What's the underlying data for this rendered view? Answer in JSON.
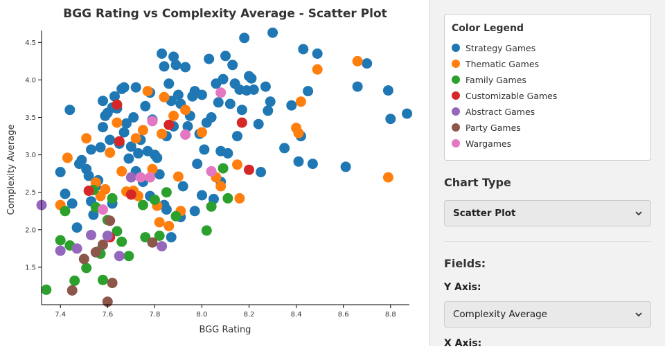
{
  "chart_data": {
    "type": "scatter",
    "title": "BGG Rating vs Complexity Average - Scatter Plot",
    "xlabel": "BGG Rating",
    "ylabel": "Complexity Average",
    "xlim": [
      7.32,
      8.88
    ],
    "ylim": [
      1.0,
      4.66
    ],
    "x_ticks": [
      "7.4",
      "7.6",
      "7.8",
      "8.0",
      "8.2",
      "8.4",
      "8.6",
      "8.8"
    ],
    "y_ticks": [
      "1.5",
      "2.0",
      "2.5",
      "3.0",
      "3.5",
      "4.0",
      "4.5"
    ],
    "series": [
      {
        "name": "Strategy Games",
        "color": "#1f77b4",
        "points": [
          [
            7.4,
            2.77
          ],
          [
            7.42,
            2.48
          ],
          [
            7.45,
            2.35
          ],
          [
            7.47,
            2.03
          ],
          [
            7.48,
            2.88
          ],
          [
            7.49,
            2.93
          ],
          [
            7.51,
            2.81
          ],
          [
            7.52,
            2.72
          ],
          [
            7.53,
            2.38
          ],
          [
            7.54,
            2.2
          ],
          [
            7.55,
            2.58
          ],
          [
            7.56,
            2.66
          ],
          [
            7.57,
            3.1
          ],
          [
            7.58,
            3.37
          ],
          [
            7.59,
            3.52
          ],
          [
            7.6,
            3.56
          ],
          [
            7.61,
            3.2
          ],
          [
            7.62,
            3.63
          ],
          [
            7.63,
            3.78
          ],
          [
            7.64,
            3.62
          ],
          [
            7.65,
            3.15
          ],
          [
            7.66,
            3.88
          ],
          [
            7.67,
            3.3
          ],
          [
            7.68,
            3.42
          ],
          [
            7.69,
            2.95
          ],
          [
            7.7,
            3.11
          ],
          [
            7.71,
            3.5
          ],
          [
            7.72,
            2.78
          ],
          [
            7.73,
            3.02
          ],
          [
            7.74,
            3.2
          ],
          [
            7.75,
            2.64
          ],
          [
            7.76,
            3.65
          ],
          [
            7.77,
            3.05
          ],
          [
            7.78,
            3.83
          ],
          [
            7.79,
            3.47
          ],
          [
            7.8,
            3.0
          ],
          [
            7.81,
            2.96
          ],
          [
            7.82,
            2.74
          ],
          [
            7.83,
            4.35
          ],
          [
            7.84,
            4.18
          ],
          [
            7.85,
            3.25
          ],
          [
            7.86,
            3.95
          ],
          [
            7.87,
            3.72
          ],
          [
            7.88,
            4.31
          ],
          [
            7.89,
            4.2
          ],
          [
            7.9,
            3.8
          ],
          [
            7.91,
            3.68
          ],
          [
            7.92,
            2.58
          ],
          [
            7.93,
            4.17
          ],
          [
            7.94,
            3.38
          ],
          [
            7.95,
            3.52
          ],
          [
            7.96,
            3.78
          ],
          [
            7.97,
            3.85
          ],
          [
            7.98,
            2.88
          ],
          [
            7.99,
            3.28
          ],
          [
            8.0,
            3.8
          ],
          [
            8.01,
            3.07
          ],
          [
            8.02,
            3.43
          ],
          [
            8.03,
            4.28
          ],
          [
            8.04,
            3.5
          ],
          [
            8.05,
            2.41
          ],
          [
            8.06,
            3.95
          ],
          [
            8.07,
            3.7
          ],
          [
            8.08,
            3.05
          ],
          [
            8.09,
            4.01
          ],
          [
            8.1,
            4.32
          ],
          [
            8.11,
            3.02
          ],
          [
            8.12,
            3.68
          ],
          [
            8.13,
            4.2
          ],
          [
            8.14,
            3.95
          ],
          [
            8.15,
            3.25
          ],
          [
            8.16,
            3.87
          ],
          [
            8.17,
            3.6
          ],
          [
            8.18,
            4.56
          ],
          [
            8.19,
            3.86
          ],
          [
            8.2,
            4.05
          ],
          [
            8.21,
            4.02
          ],
          [
            8.22,
            3.87
          ],
          [
            8.24,
            3.41
          ],
          [
            8.25,
            2.77
          ],
          [
            8.27,
            3.91
          ],
          [
            8.28,
            3.59
          ],
          [
            8.29,
            3.71
          ],
          [
            8.3,
            4.63
          ],
          [
            8.35,
            3.09
          ],
          [
            8.38,
            3.66
          ],
          [
            8.41,
            2.91
          ],
          [
            8.42,
            3.25
          ],
          [
            8.43,
            4.41
          ],
          [
            8.45,
            3.85
          ],
          [
            8.47,
            2.88
          ],
          [
            8.49,
            4.35
          ],
          [
            8.61,
            2.84
          ],
          [
            8.66,
            3.91
          ],
          [
            8.7,
            4.22
          ],
          [
            8.79,
            3.86
          ],
          [
            8.8,
            3.48
          ],
          [
            8.87,
            3.55
          ],
          [
            8.08,
            2.64
          ],
          [
            7.53,
            3.07
          ],
          [
            7.62,
            2.35
          ],
          [
            7.78,
            2.45
          ],
          [
            7.85,
            2.27
          ],
          [
            7.91,
            2.17
          ],
          [
            7.97,
            2.25
          ],
          [
            8.0,
            2.46
          ],
          [
            7.87,
            1.9
          ],
          [
            7.84,
            2.33
          ],
          [
            7.67,
            3.9
          ],
          [
            7.72,
            3.9
          ],
          [
            7.44,
            3.6
          ],
          [
            7.58,
            3.72
          ],
          [
            7.88,
            3.38
          ]
        ]
      },
      {
        "name": "Thematic Games",
        "color": "#ff7f0e",
        "points": [
          [
            7.43,
            2.96
          ],
          [
            7.4,
            2.33
          ],
          [
            7.51,
            3.22
          ],
          [
            7.55,
            2.63
          ],
          [
            7.57,
            2.45
          ],
          [
            7.59,
            2.54
          ],
          [
            7.61,
            3.03
          ],
          [
            7.64,
            3.43
          ],
          [
            7.66,
            2.78
          ],
          [
            7.68,
            2.51
          ],
          [
            7.71,
            2.52
          ],
          [
            7.73,
            2.45
          ],
          [
            7.75,
            3.33
          ],
          [
            7.77,
            3.85
          ],
          [
            7.79,
            2.81
          ],
          [
            7.81,
            2.32
          ],
          [
            7.83,
            3.28
          ],
          [
            7.84,
            3.77
          ],
          [
            7.86,
            2.05
          ],
          [
            7.88,
            3.52
          ],
          [
            7.9,
            2.71
          ],
          [
            7.91,
            2.25
          ],
          [
            7.93,
            3.6
          ],
          [
            8.0,
            3.3
          ],
          [
            8.06,
            2.7
          ],
          [
            8.08,
            2.58
          ],
          [
            8.15,
            2.87
          ],
          [
            8.16,
            2.42
          ],
          [
            8.4,
            3.36
          ],
          [
            8.41,
            3.29
          ],
          [
            8.42,
            3.71
          ],
          [
            8.49,
            4.14
          ],
          [
            8.66,
            4.25
          ],
          [
            8.79,
            2.7
          ],
          [
            7.82,
            2.1
          ],
          [
            7.72,
            3.22
          ]
        ]
      },
      {
        "name": "Family Games",
        "color": "#2ca02c",
        "points": [
          [
            7.34,
            1.2
          ],
          [
            7.4,
            1.86
          ],
          [
            7.42,
            2.25
          ],
          [
            7.44,
            1.79
          ],
          [
            7.46,
            1.32
          ],
          [
            7.51,
            1.49
          ],
          [
            7.54,
            2.53
          ],
          [
            7.55,
            2.3
          ],
          [
            7.56,
            1.71
          ],
          [
            7.58,
            1.33
          ],
          [
            7.6,
            2.13
          ],
          [
            7.62,
            2.42
          ],
          [
            7.64,
            1.98
          ],
          [
            7.66,
            1.84
          ],
          [
            7.69,
            1.65
          ],
          [
            7.75,
            2.33
          ],
          [
            7.76,
            1.9
          ],
          [
            7.8,
            2.4
          ],
          [
            7.82,
            1.92
          ],
          [
            7.85,
            2.5
          ],
          [
            7.89,
            2.18
          ],
          [
            8.02,
            1.99
          ],
          [
            8.04,
            2.31
          ],
          [
            8.09,
            2.82
          ],
          [
            8.11,
            2.42
          ],
          [
            7.57,
            1.68
          ]
        ]
      },
      {
        "name": "Customizable Games",
        "color": "#d62728",
        "points": [
          [
            7.52,
            2.52
          ],
          [
            7.64,
            3.67
          ],
          [
            7.7,
            2.47
          ],
          [
            7.86,
            3.4
          ],
          [
            8.17,
            3.43
          ],
          [
            8.2,
            2.8
          ],
          [
            7.61,
            1.9
          ],
          [
            7.65,
            3.18
          ]
        ]
      },
      {
        "name": "Abstract Games",
        "color": "#9467bd",
        "points": [
          [
            7.32,
            2.33
          ],
          [
            7.4,
            1.72
          ],
          [
            7.47,
            1.75
          ],
          [
            7.53,
            1.93
          ],
          [
            7.65,
            1.65
          ],
          [
            7.7,
            2.7
          ],
          [
            7.83,
            1.78
          ],
          [
            7.6,
            1.92
          ]
        ]
      },
      {
        "name": "Party Games",
        "color": "#8c564b",
        "points": [
          [
            7.45,
            1.19
          ],
          [
            7.5,
            1.61
          ],
          [
            7.58,
            1.8
          ],
          [
            7.6,
            1.04
          ],
          [
            7.62,
            1.29
          ],
          [
            7.79,
            1.83
          ],
          [
            7.61,
            2.12
          ],
          [
            7.55,
            1.7
          ]
        ]
      },
      {
        "name": "Wargames",
        "color": "#e377c2",
        "points": [
          [
            7.58,
            2.27
          ],
          [
            7.74,
            2.7
          ],
          [
            7.79,
            3.45
          ],
          [
            7.93,
            3.27
          ],
          [
            8.04,
            2.78
          ],
          [
            8.08,
            3.83
          ],
          [
            7.78,
            2.7
          ]
        ]
      }
    ]
  },
  "sidebar": {
    "legend_title": "Color Legend",
    "legend_items": [
      {
        "label": "Strategy Games",
        "color": "#1f77b4"
      },
      {
        "label": "Thematic Games",
        "color": "#ff7f0e"
      },
      {
        "label": "Family Games",
        "color": "#2ca02c"
      },
      {
        "label": "Customizable Games",
        "color": "#d62728"
      },
      {
        "label": "Abstract Games",
        "color": "#9467bd"
      },
      {
        "label": "Party Games",
        "color": "#8c564b"
      },
      {
        "label": "Wargames",
        "color": "#e377c2"
      }
    ],
    "chart_type_heading": "Chart Type",
    "chart_type_value": "Scatter Plot",
    "fields_heading": "Fields:",
    "y_axis_label": "Y Axis:",
    "y_axis_value": "Complexity Average",
    "x_axis_label": "X Axis:"
  }
}
